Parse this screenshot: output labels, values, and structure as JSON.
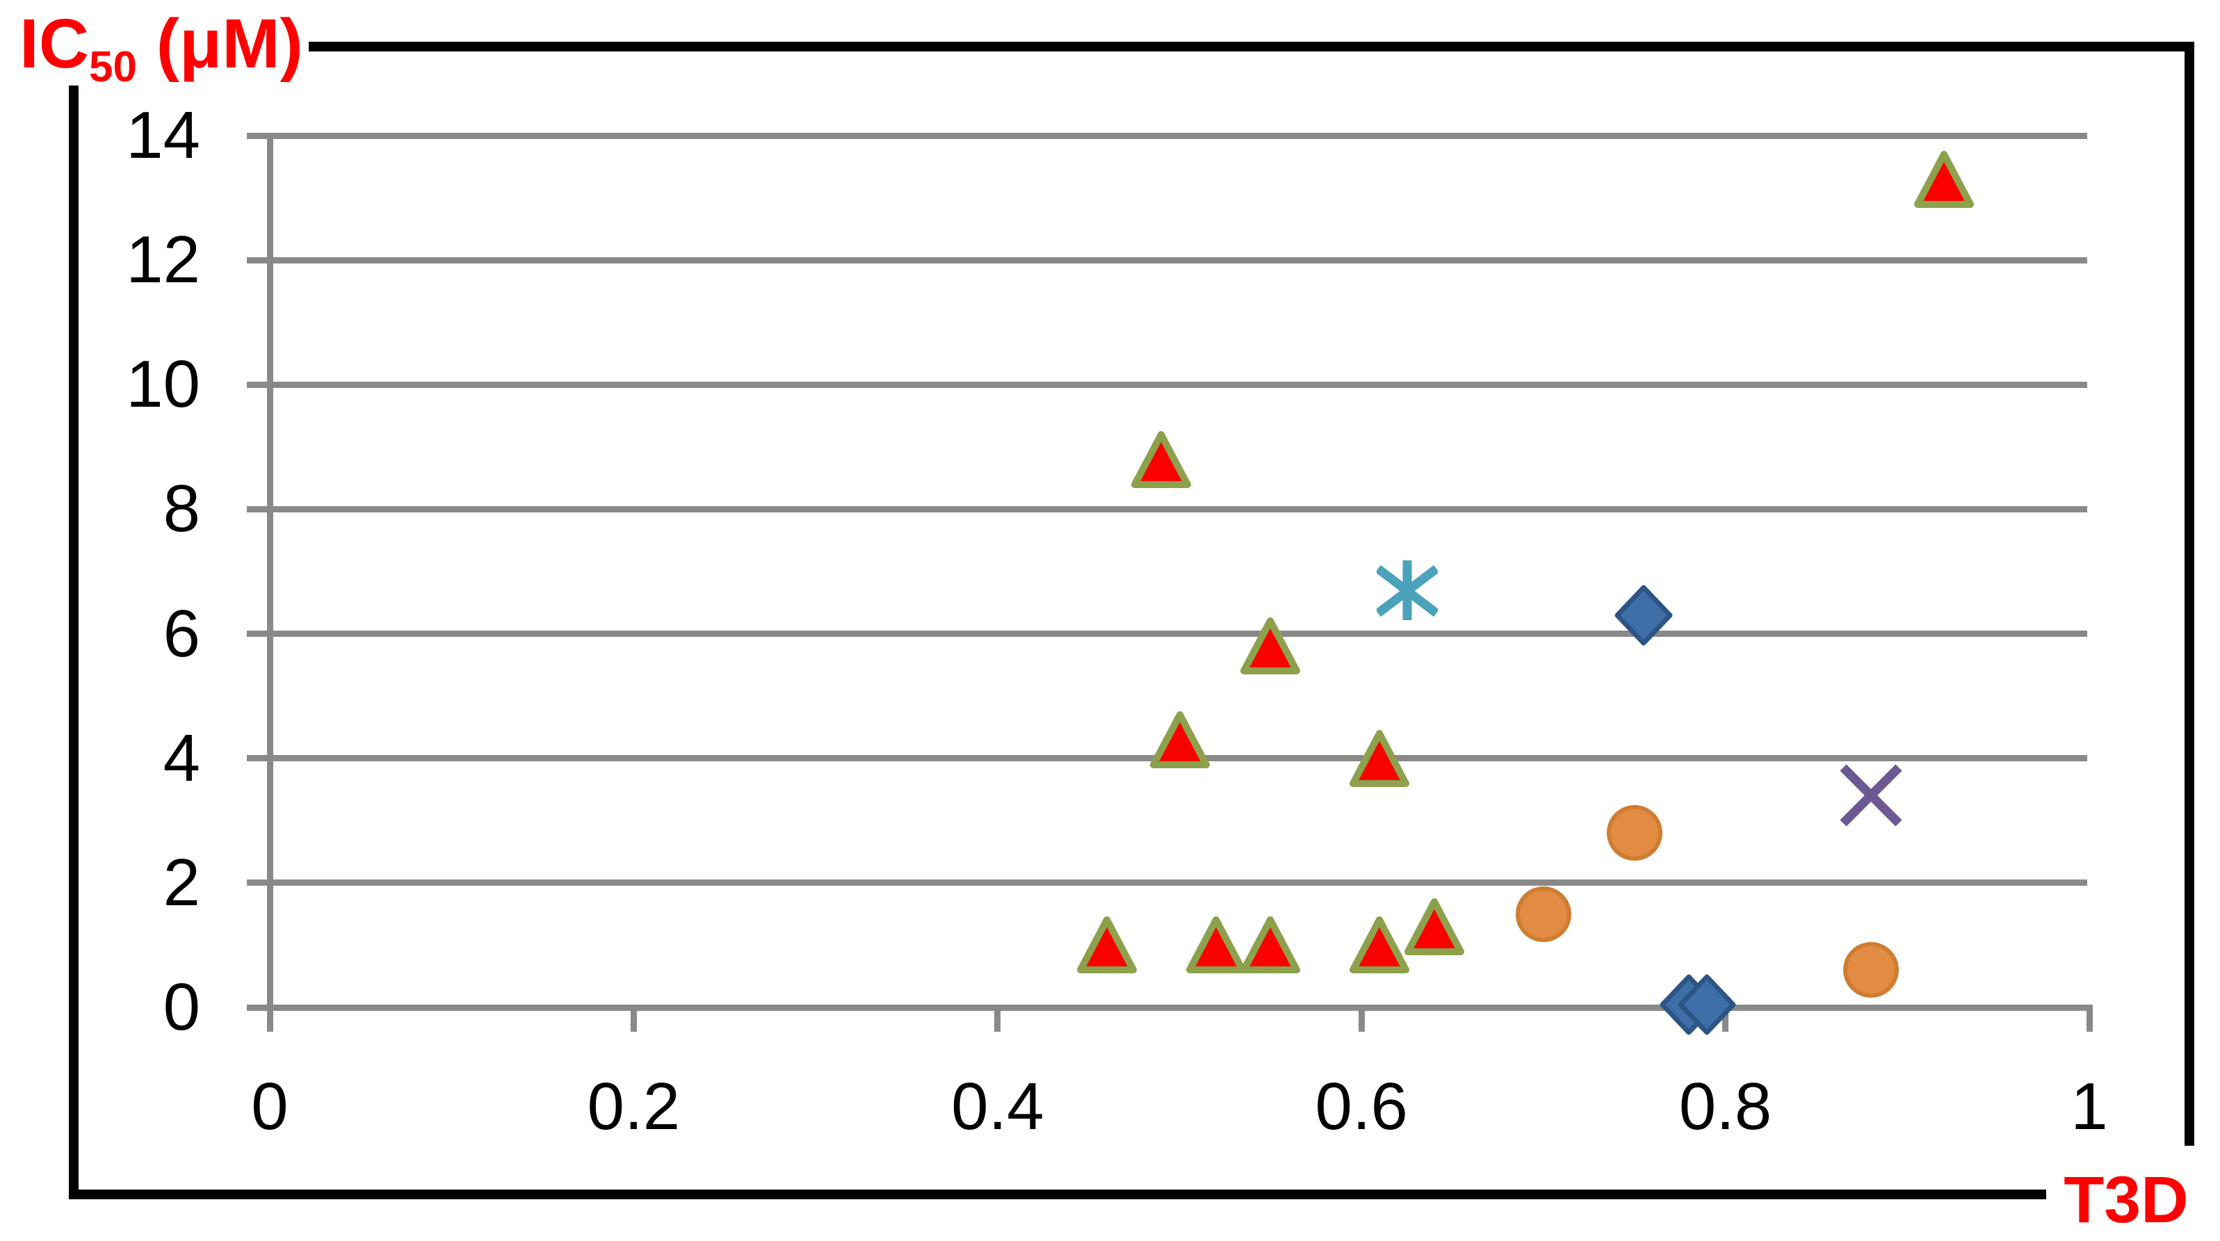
{
  "labels": {
    "y_axis": {
      "prefix": "IC",
      "sub": "50",
      "suffix": " (μM)"
    },
    "x_axis": "T3D"
  },
  "colors": {
    "axis_label": "#fe0000",
    "grid": "#898989",
    "frame": "#000000",
    "tick_text": "#000000"
  },
  "chart_data": {
    "type": "scatter",
    "title": "",
    "xlabel": "T3D",
    "ylabel": "IC50 (μM)",
    "xlim": [
      0,
      1
    ],
    "ylim": [
      0,
      14
    ],
    "x_ticks": [
      0,
      0.2,
      0.4,
      0.6,
      0.8,
      1
    ],
    "x_tick_labels": [
      "0",
      "0.2",
      "0.4",
      "0.6",
      "0.8",
      "1"
    ],
    "y_ticks": [
      0,
      2,
      4,
      6,
      8,
      10,
      12,
      14
    ],
    "y_tick_labels": [
      "0",
      "2",
      "4",
      "6",
      "8",
      "10",
      "12",
      "14"
    ],
    "grid": "horizontal",
    "legend": "none",
    "series": [
      {
        "name": "red-triangle-series",
        "marker": "triangle-up",
        "fill": "#fb0100",
        "stroke": "#8da14d",
        "points": [
          [
            0.92,
            13.3
          ],
          [
            0.49,
            8.8
          ],
          [
            0.55,
            5.8
          ],
          [
            0.5,
            4.3
          ],
          [
            0.61,
            4.0
          ],
          [
            0.64,
            1.3
          ],
          [
            0.46,
            1.0
          ],
          [
            0.52,
            1.0
          ],
          [
            0.55,
            1.0
          ],
          [
            0.61,
            1.0
          ]
        ]
      },
      {
        "name": "blue-diamond-series",
        "marker": "diamond",
        "fill": "#3f6fa8",
        "stroke": "#2c5585",
        "points": [
          [
            0.755,
            6.3
          ],
          [
            0.78,
            0.05
          ],
          [
            0.79,
            0.05
          ]
        ]
      },
      {
        "name": "orange-circle-series",
        "marker": "circle",
        "fill": "#e28b43",
        "stroke": "#d07c31",
        "points": [
          [
            0.75,
            2.8
          ],
          [
            0.7,
            1.5
          ],
          [
            0.88,
            0.6
          ]
        ]
      },
      {
        "name": "teal-asterisk-series",
        "marker": "asterisk",
        "fill": "none",
        "stroke": "#4aa2bb",
        "points": [
          [
            0.625,
            6.7
          ]
        ]
      },
      {
        "name": "purple-x-series",
        "marker": "x",
        "fill": "none",
        "stroke": "#6c5994",
        "points": [
          [
            0.88,
            3.4
          ]
        ]
      }
    ]
  }
}
